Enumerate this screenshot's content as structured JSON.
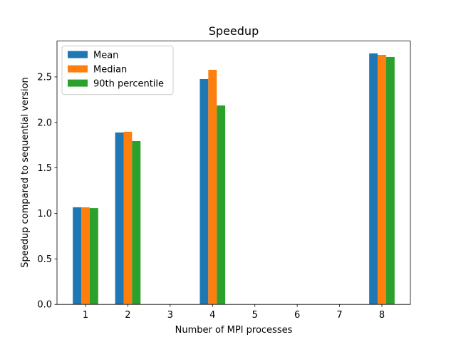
{
  "chart_data": {
    "type": "bar",
    "title": "Speedup",
    "xlabel": "Number of MPI processes",
    "ylabel": "Speedup compared to sequential version",
    "x": [
      1,
      2,
      4,
      8
    ],
    "series": [
      {
        "name": "Mean",
        "color": "#1f77b4",
        "values": [
          1.067,
          1.889,
          2.476,
          2.758
        ]
      },
      {
        "name": "Median",
        "color": "#ff7f0e",
        "values": [
          1.067,
          1.897,
          2.578,
          2.742
        ]
      },
      {
        "name": "90th percentile",
        "color": "#2ca02c",
        "values": [
          1.058,
          1.795,
          2.186,
          2.719
        ]
      }
    ],
    "xlim": [
      0.327,
      8.673
    ],
    "xticks": [
      1,
      2,
      3,
      4,
      5,
      6,
      7,
      8
    ],
    "ylim": [
      0,
      2.894
    ],
    "yticks": [
      {
        "value": 0,
        "label": "0.0"
      },
      0.5,
      {
        "value": 1,
        "label": "1.0"
      },
      1.5,
      {
        "value": 2,
        "label": "2.0"
      },
      2.5
    ],
    "legend": "upper left"
  }
}
